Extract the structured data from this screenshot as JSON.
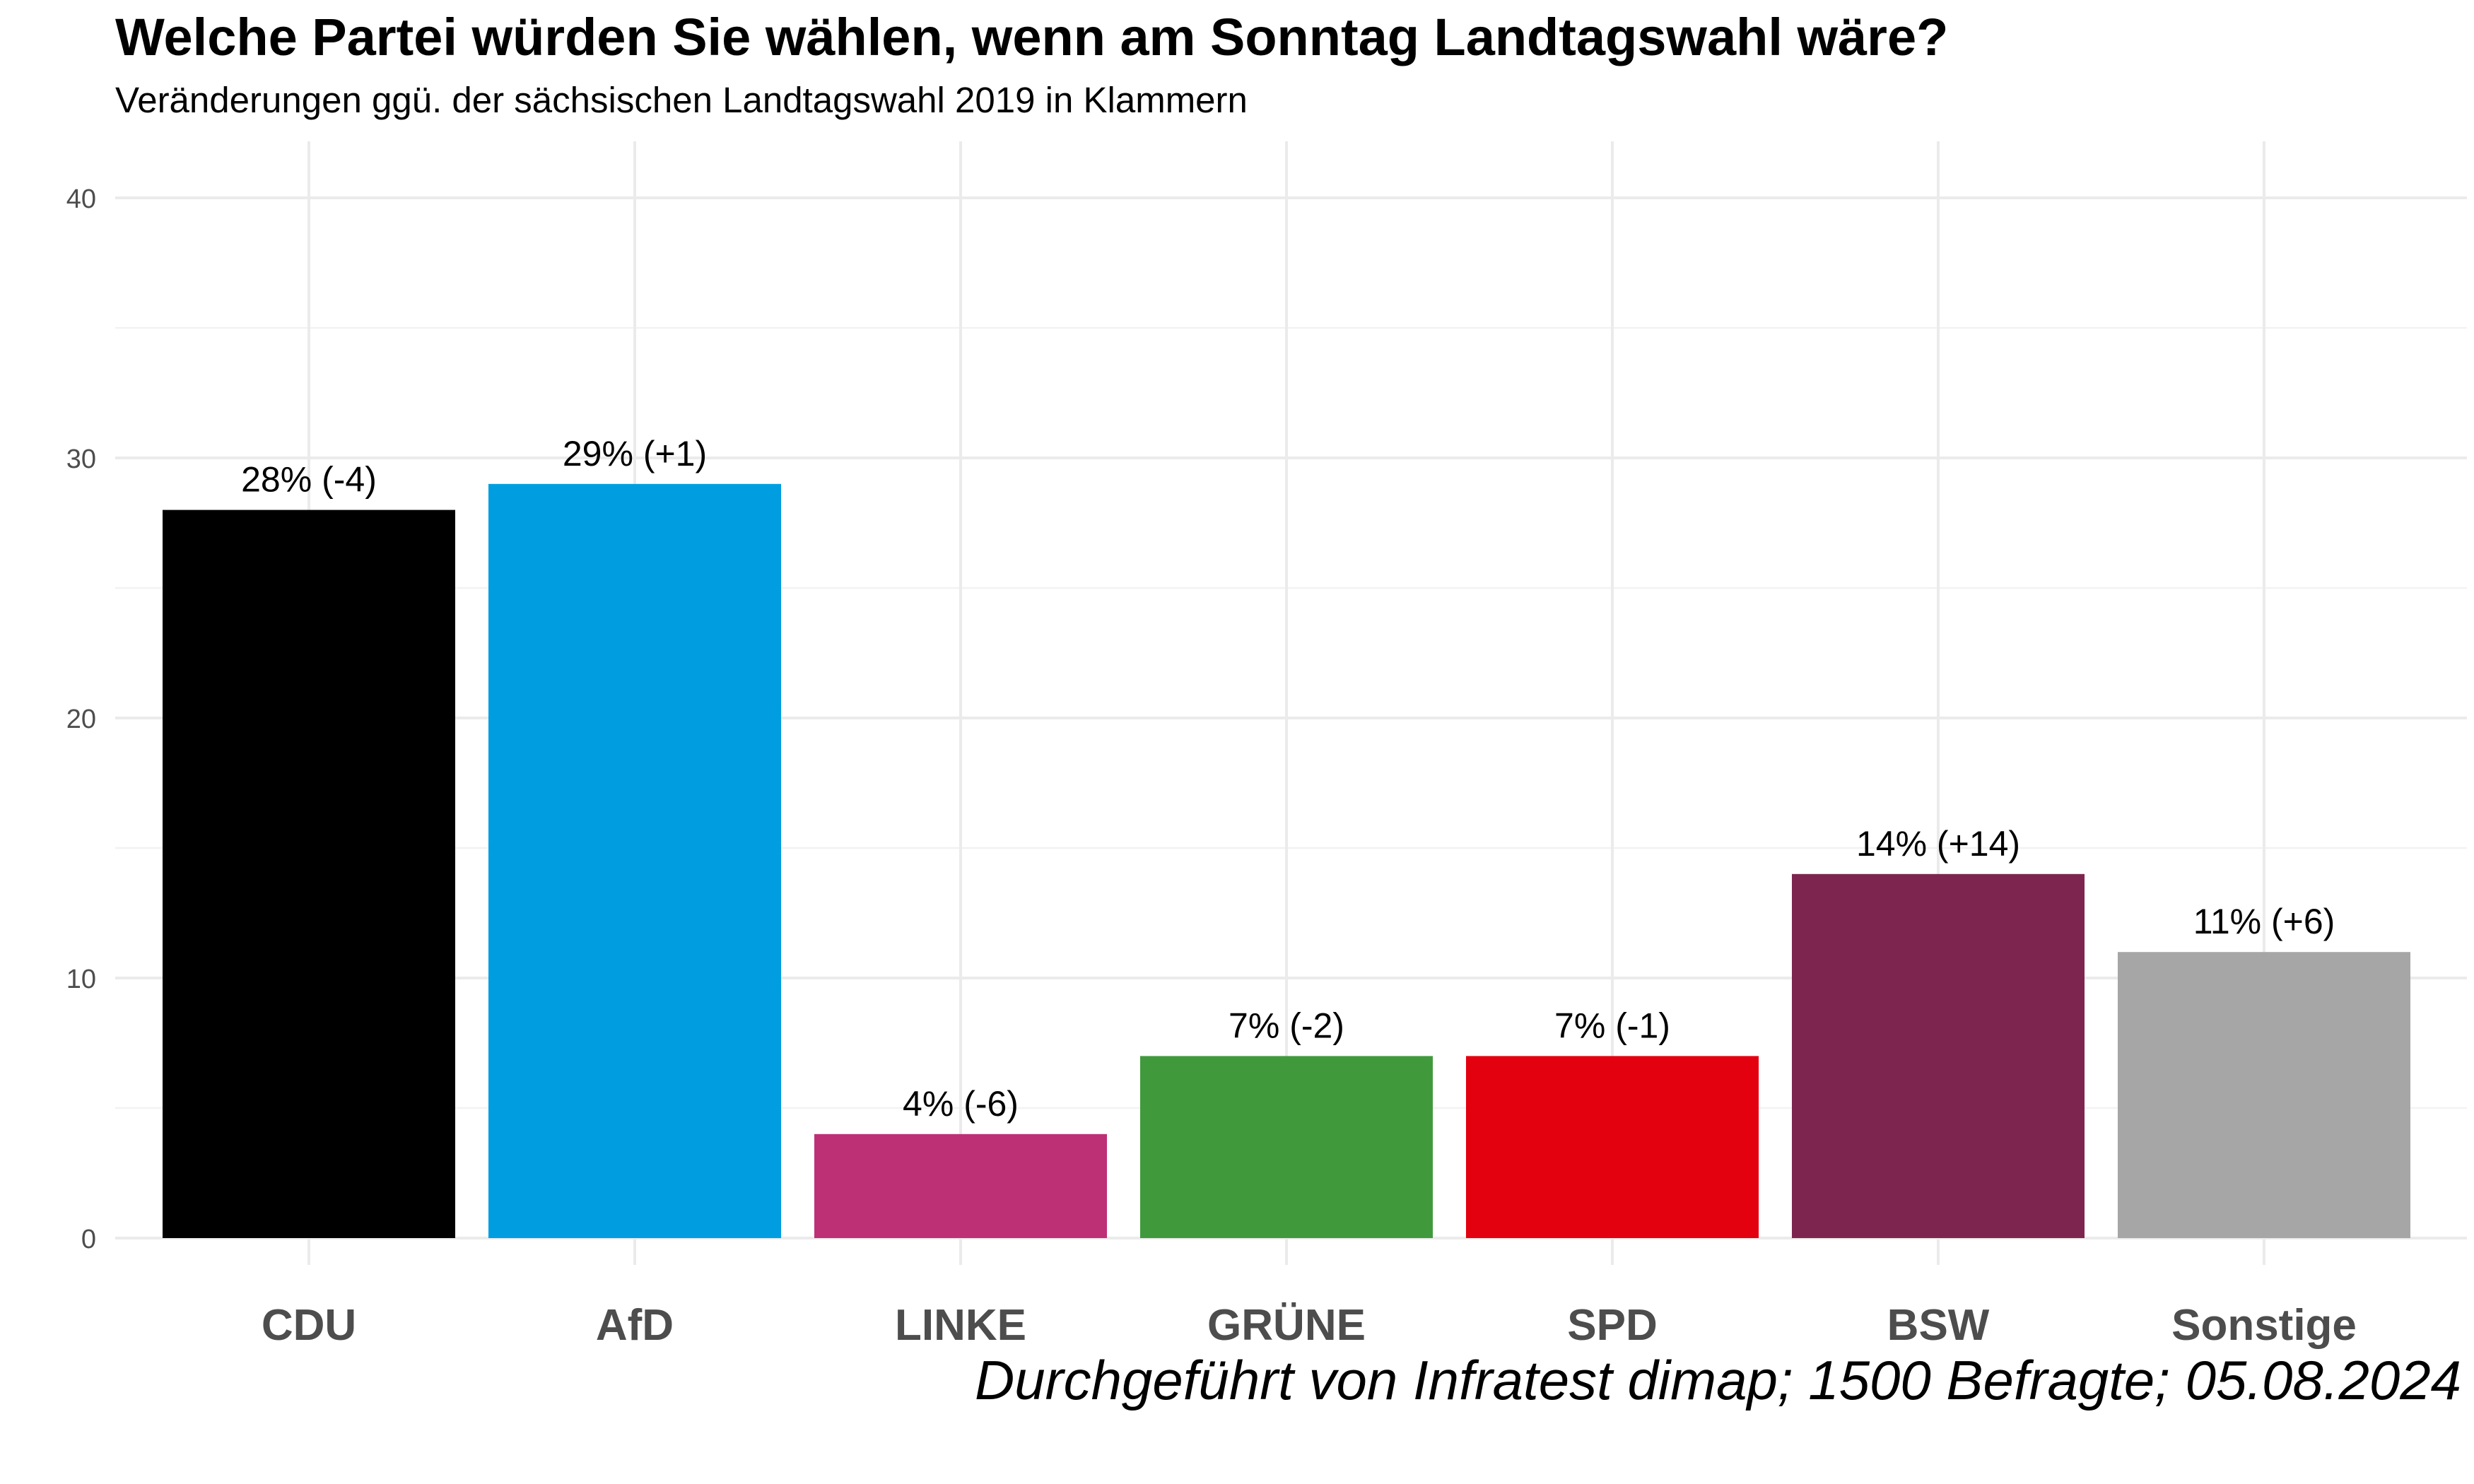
{
  "chart_data": {
    "type": "bar",
    "title": "Welche Partei würden Sie wählen, wenn am Sonntag Landtagswahl wäre?",
    "subtitle": "Veränderungen ggü. der sächsischen Landtagswahl 2019 in Klammern",
    "caption": "Durchgeführt von Infratest dimap; 1500 Befragte; 05.08.2024",
    "xlabel": "",
    "ylabel": "",
    "ylim": [
      0,
      42
    ],
    "yticks": [
      0,
      10,
      20,
      30,
      40
    ],
    "grid": true,
    "legend": "none",
    "categories": [
      "CDU",
      "AfD",
      "LINKE",
      "GRÜNE",
      "SPD",
      "BSW",
      "Sonstige"
    ],
    "values": [
      28,
      29,
      4,
      7,
      7,
      14,
      11
    ],
    "data_labels": [
      "28% (-4)",
      "29% (+1)",
      "4% (-6)",
      "7% (-2)",
      "7% (-1)",
      "14% (+14)",
      "11% (+6)"
    ],
    "colors": [
      "#000000",
      "#009EE0",
      "#BE3075",
      "#409A3C",
      "#E3000F",
      "#7D254F",
      "#A6A6A6"
    ]
  }
}
